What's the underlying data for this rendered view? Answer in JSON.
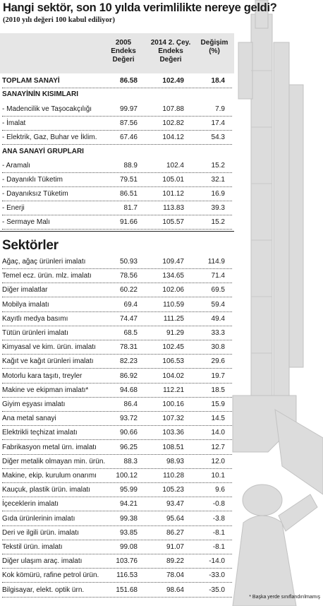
{
  "title": "Hangi sektör, son 10 yılda verimlilikte nereye geldi?",
  "subtitle": "(2010 yılı değeri 100 kabul ediliyor)",
  "columns": [
    "2005 Endeks Değeri",
    "2014 2. Çey. Endeks Değeri",
    "Değişim (%)"
  ],
  "column_lines": [
    [
      "2005",
      "Endeks",
      "Değeri"
    ],
    [
      "2014 2. Çey.",
      "Endeks",
      "Değeri"
    ],
    [
      "Değişim",
      "(%)",
      ""
    ]
  ],
  "footnote": "* Başka yerde sınıflandırılmamış",
  "sectors_heading": "Sektörler",
  "top_rows": [
    {
      "label": "TOPLAM SANAYİ",
      "v2005": "86.58",
      "v2014": "102.49",
      "change": "18.4",
      "kind": "total"
    },
    {
      "label": "SANAYİNİN KISIMLARI",
      "kind": "section"
    },
    {
      "label": "- Madencilik ve Taşocakçılığı",
      "v2005": "99.97",
      "v2014": "107.88",
      "change": "7.9",
      "kind": "item"
    },
    {
      "label": "- İmalat",
      "v2005": "87.56",
      "v2014": "102.82",
      "change": "17.4",
      "kind": "item"
    },
    {
      "label": "- Elektrik, Gaz, Buhar ve İklim.",
      "v2005": "67.46",
      "v2014": "104.12",
      "change": "54.3",
      "kind": "item"
    },
    {
      "label": "ANA SANAYİ GRUPLARI",
      "kind": "section"
    },
    {
      "label": "- Aramalı",
      "v2005": "88.9",
      "v2014": "102.4",
      "change": "15.2",
      "kind": "item"
    },
    {
      "label": "- Dayanıklı Tüketim",
      "v2005": "79.51",
      "v2014": "105.01",
      "change": "32.1",
      "kind": "item"
    },
    {
      "label": "- Dayanıksız Tüketim",
      "v2005": "86.51",
      "v2014": "101.12",
      "change": "16.9",
      "kind": "item"
    },
    {
      "label": "- Enerji",
      "v2005": "81.7",
      "v2014": "113.83",
      "change": "39.3",
      "kind": "item"
    },
    {
      "label": "- Sermaye Malı",
      "v2005": "91.66",
      "v2014": "105.57",
      "change": "15.2",
      "kind": "item"
    }
  ],
  "sector_rows": [
    {
      "label": "Ağaç, ağaç ürünleri imalatı",
      "v2005": "50.93",
      "v2014": "109.47",
      "change": "114.9"
    },
    {
      "label": "Temel ecz. ürün. mlz. imalatı",
      "v2005": "78.56",
      "v2014": "134.65",
      "change": "71.4"
    },
    {
      "label": "Diğer imalatlar",
      "v2005": "60.22",
      "v2014": "102.06",
      "change": "69.5"
    },
    {
      "label": "Mobilya imalatı",
      "v2005": "69.4",
      "v2014": "110.59",
      "change": "59.4"
    },
    {
      "label": "Kayıtlı medya basımı",
      "v2005": "74.47",
      "v2014": "111.25",
      "change": "49.4"
    },
    {
      "label": "Tütün ürünleri imalatı",
      "v2005": "68.5",
      "v2014": "91.29",
      "change": "33.3"
    },
    {
      "label": "Kimyasal ve kim. ürün. imalatı",
      "v2005": "78.31",
      "v2014": "102.45",
      "change": "30.8"
    },
    {
      "label": "Kağıt ve kağıt ürünleri imalatı",
      "v2005": "82.23",
      "v2014": "106.53",
      "change": "29.6"
    },
    {
      "label": "Motorlu kara taşıtı, treyler",
      "v2005": "86.92",
      "v2014": "104.02",
      "change": "19.7"
    },
    {
      "label": "Makine ve ekipman imalatı*",
      "v2005": "94.68",
      "v2014": "112.21",
      "change": "18.5"
    },
    {
      "label": "Giyim eşyası imalatı",
      "v2005": "86.4",
      "v2014": "100.16",
      "change": "15.9"
    },
    {
      "label": "Ana metal sanayi",
      "v2005": "93.72",
      "v2014": "107.32",
      "change": "14.5"
    },
    {
      "label": "Elektrikli teçhizat imalatı",
      "v2005": "90.66",
      "v2014": "103.36",
      "change": "14.0"
    },
    {
      "label": "Fabrikasyon metal ürn. imalatı",
      "v2005": "96.25",
      "v2014": "108.51",
      "change": "12.7"
    },
    {
      "label": "Diğer metalik olmayan min. ürün.",
      "v2005": "88.3",
      "v2014": "98.93",
      "change": "12.0"
    },
    {
      "label": "Makine, ekip. kurulum onarımı",
      "v2005": "100.12",
      "v2014": "110.28",
      "change": "10.1"
    },
    {
      "label": "Kauçuk, plastik ürün. imalatı",
      "v2005": "95.99",
      "v2014": "105.23",
      "change": "9.6"
    },
    {
      "label": "İçeceklerin imalatı",
      "v2005": "94.21",
      "v2014": "93.47",
      "change": "-0.8"
    },
    {
      "label": "Gıda ürünlerinin imalatı",
      "v2005": "99.38",
      "v2014": "95.64",
      "change": "-3.8"
    },
    {
      "label": "Deri ve ilgili ürün. imalatı",
      "v2005": "93.85",
      "v2014": "86.27",
      "change": "-8.1"
    },
    {
      "label": "Tekstil ürün. imalatı",
      "v2005": "99.08",
      "v2014": "91.07",
      "change": "-8.1"
    },
    {
      "label": "Diğer ulaşım araç. imalatı",
      "v2005": "103.76",
      "v2014": "89.22",
      "change": "-14.0"
    },
    {
      "label": "Kok kömürü, rafine petrol ürün.",
      "v2005": "116.53",
      "v2014": "78.04",
      "change": "-33.0"
    },
    {
      "label": "Bilgisayar, elekt. optik ürn.",
      "v2005": "151.68",
      "v2014": "98.64",
      "change": "-35.0"
    }
  ],
  "chart_data": {
    "type": "table",
    "title": "Hangi sektör, son 10 yılda verimlilikte nereye geldi?",
    "subtitle": "(2010 yılı değeri 100 kabul ediliyor)",
    "columns": [
      "2005 Endeks Değeri",
      "2014 2. Çey. Endeks Değeri",
      "Değişim (%)"
    ]
  }
}
